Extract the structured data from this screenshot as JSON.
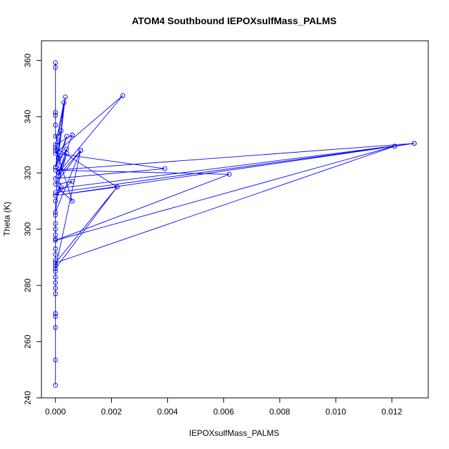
{
  "chart_data": {
    "type": "line",
    "title": "ATOM4 Southbound IEPOXsulfMass_PALMS",
    "xlabel": "IEPOXsulfMass_PALMS",
    "ylabel": "Theta (K)",
    "xlim": [
      -0.0005,
      0.0133
    ],
    "ylim": [
      240,
      367
    ],
    "xticks": [
      0.0,
      0.002,
      0.004,
      0.006,
      0.008,
      0.01,
      0.012
    ],
    "xtick_labels": [
      "0.000",
      "0.002",
      "0.004",
      "0.006",
      "0.008",
      "0.010",
      "0.012"
    ],
    "yticks": [
      240,
      260,
      280,
      300,
      320,
      340,
      360
    ],
    "ytick_labels": [
      "240",
      "260",
      "280",
      "300",
      "320",
      "340",
      "360"
    ],
    "grid": false,
    "legend": "none",
    "series": [
      {
        "color": "#0000ff",
        "points": [
          [
            0.0,
            359.2
          ],
          [
            0.0,
            357.5
          ],
          [
            0.0,
            341.5
          ],
          [
            0.0,
            340.5
          ],
          [
            0.0,
            337.0
          ],
          [
            0.0,
            333.0
          ],
          [
            0.0001,
            331.0
          ],
          [
            0.0,
            328.0
          ],
          [
            0.0001,
            325.5
          ],
          [
            0.0,
            322.0
          ],
          [
            0.0002,
            335.0
          ],
          [
            0.0001,
            333.0
          ],
          [
            0.00035,
            347.0
          ],
          [
            0.0001,
            325.0
          ],
          [
            0.0003,
            345.0
          ],
          [
            0.0,
            330.0
          ],
          [
            0.0006,
            333.5
          ],
          [
            0.0001,
            320.0
          ],
          [
            0.0024,
            347.5
          ],
          [
            0.0,
            327.0
          ],
          [
            0.0039,
            321.5
          ],
          [
            0.0,
            318.0
          ],
          [
            0.0004,
            333.0
          ],
          [
            0.0,
            322.0
          ],
          [
            0.0004,
            328.5
          ],
          [
            0.0001,
            319.0
          ],
          [
            0.0009,
            328.0
          ],
          [
            0.0,
            316.0
          ],
          [
            0.0004,
            327.0
          ],
          [
            0.0001,
            316.0
          ],
          [
            0.0006,
            317.0
          ],
          [
            0.0,
            312.0
          ],
          [
            0.0022,
            315.0
          ],
          [
            0.0,
            329.0
          ],
          [
            0.0006,
            310.0
          ],
          [
            0.0001,
            314.5
          ],
          [
            0.0128,
            330.5
          ],
          [
            0.0,
            313.0
          ],
          [
            0.0121,
            329.5
          ],
          [
            0.0,
            312.0
          ],
          [
            0.0128,
            330.5
          ],
          [
            0.0,
            321.0
          ],
          [
            0.0062,
            319.5
          ],
          [
            0.0,
            296.0
          ],
          [
            0.0121,
            329.5
          ],
          [
            0.0,
            288.0
          ],
          [
            0.0022,
            315.0
          ],
          [
            0.0,
            286.0
          ],
          [
            0.0009,
            328.0
          ],
          [
            0.0,
            306.0
          ],
          [
            0.0001,
            314.5
          ],
          [
            0.0002,
            315.0
          ],
          [
            0.0,
            310.0
          ],
          [
            0.0,
            305.0
          ],
          [
            0.0,
            302.0
          ],
          [
            0.0,
            300.0
          ],
          [
            0.0,
            298.0
          ],
          [
            0.0,
            296.5
          ],
          [
            0.0,
            293.0
          ],
          [
            0.0,
            291.0
          ],
          [
            0.0,
            289.0
          ],
          [
            0.0,
            287.0
          ],
          [
            0.0,
            285.0
          ],
          [
            0.0,
            283.0
          ],
          [
            0.0,
            281.0
          ],
          [
            0.0,
            279.0
          ],
          [
            0.0,
            277.0
          ],
          [
            0.0,
            270.0
          ],
          [
            0.0,
            269.0
          ],
          [
            0.0,
            265.0
          ],
          [
            0.0,
            253.5
          ],
          [
            0.0,
            244.5
          ]
        ]
      }
    ]
  }
}
